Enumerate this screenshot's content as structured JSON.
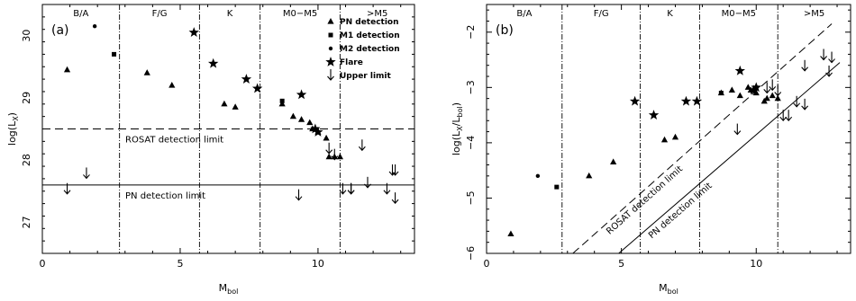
{
  "chart_data": [
    {
      "type": "scatter",
      "panel_label": "(a)",
      "xlabel": "M",
      "xlabel_sub": "bol",
      "ylabel": "log(L",
      "ylabel_sub": "X",
      "ylabel_tail": ")",
      "xlim": [
        0,
        13.5
      ],
      "ylim": [
        26.5,
        30.5
      ],
      "xticks": [
        0,
        5,
        10
      ],
      "yticks": [
        27,
        28,
        29,
        30
      ],
      "spectral_bands": [
        {
          "label": "B/A",
          "x_from": 0,
          "x_to": 2.8
        },
        {
          "label": "F/G",
          "x_from": 2.8,
          "x_to": 5.7
        },
        {
          "label": "K",
          "x_from": 5.7,
          "x_to": 7.9
        },
        {
          "label": "M0−M5",
          "x_from": 7.9,
          "x_to": 10.8
        },
        {
          "label": ">M5",
          "x_from": 10.8,
          "x_to": 13.5
        }
      ],
      "reference_lines": [
        {
          "label": "ROSAT detection limit",
          "y": 28.5,
          "style": "dashed"
        },
        {
          "label": "PN detection limit",
          "y": 27.6,
          "style": "solid"
        }
      ],
      "legend_position": "top-right",
      "series": [
        {
          "name": "PN detection",
          "marker": "triangle",
          "x": [
            0.9,
            3.8,
            4.7,
            6.6,
            7.0,
            8.7,
            9.1,
            9.4,
            9.7,
            9.8,
            10.0,
            10.3,
            10.4,
            10.6,
            10.8
          ],
          "y": [
            29.45,
            29.4,
            29.2,
            28.9,
            28.85,
            28.9,
            28.7,
            28.65,
            28.6,
            28.5,
            28.45,
            28.35,
            28.05,
            28.05,
            28.05
          ]
        },
        {
          "name": "M1 detection",
          "marker": "square",
          "x": [
            2.6,
            8.7
          ],
          "y": [
            29.7,
            28.95
          ]
        },
        {
          "name": "M2 detection",
          "marker": "dot",
          "x": [
            1.9
          ],
          "y": [
            30.15
          ]
        },
        {
          "name": "Flare",
          "marker": "star",
          "x": [
            5.5,
            6.2,
            7.4,
            7.8,
            9.4,
            9.9,
            10.0
          ],
          "y": [
            30.05,
            29.55,
            29.3,
            29.15,
            29.05,
            28.5,
            28.45
          ]
        },
        {
          "name": "Upper limit",
          "marker": "arrow-down",
          "x": [
            0.9,
            1.6,
            9.3,
            10.4,
            10.6,
            10.9,
            11.2,
            11.2,
            11.6,
            11.8,
            12.5,
            12.7,
            12.8,
            12.8
          ],
          "y": [
            27.5,
            27.75,
            27.4,
            28.15,
            28.05,
            27.5,
            27.5,
            27.5,
            28.2,
            27.6,
            27.5,
            27.8,
            27.8,
            27.35
          ]
        }
      ]
    },
    {
      "type": "scatter",
      "panel_label": "(b)",
      "xlabel": "M",
      "xlabel_sub": "bol",
      "ylabel": "log(L",
      "ylabel_sub": "X",
      "ylabel_mid": "/L",
      "ylabel_sub2": "bol",
      "ylabel_tail": ")",
      "xlim": [
        0,
        13.5
      ],
      "ylim": [
        -6,
        -1.5
      ],
      "xticks": [
        0,
        5,
        10
      ],
      "yticks": [
        -6,
        -5,
        -4,
        -3,
        -2
      ],
      "spectral_bands": [
        {
          "label": "B/A",
          "x_from": 0,
          "x_to": 2.8
        },
        {
          "label": "F/G",
          "x_from": 2.8,
          "x_to": 5.7
        },
        {
          "label": "K",
          "x_from": 5.7,
          "x_to": 7.9
        },
        {
          "label": "M0−M5",
          "x_from": 7.9,
          "x_to": 10.8
        },
        {
          "label": ">M5",
          "x_from": 10.8,
          "x_to": 13.5
        }
      ],
      "reference_lines": [
        {
          "label": "ROSAT detection limit",
          "style": "dashed",
          "x": [
            3.2,
            12.8
          ],
          "y": [
            -6.0,
            -1.85
          ]
        },
        {
          "label": "PN detection limit",
          "style": "solid",
          "x": [
            4.9,
            13.1
          ],
          "y": [
            -6.0,
            -2.55
          ]
        }
      ],
      "series": [
        {
          "name": "PN detection",
          "marker": "triangle",
          "x": [
            0.9,
            3.8,
            4.7,
            6.6,
            7.0,
            8.7,
            9.1,
            9.4,
            9.7,
            9.8,
            10.0,
            10.3,
            10.4,
            10.6,
            10.8
          ],
          "y": [
            -5.65,
            -4.6,
            -4.35,
            -3.95,
            -3.9,
            -3.1,
            -3.05,
            -3.15,
            -3.0,
            -3.05,
            -3.1,
            -3.25,
            -3.2,
            -3.15,
            -3.2
          ]
        },
        {
          "name": "M1 detection",
          "marker": "square",
          "x": [
            2.6,
            8.7
          ],
          "y": [
            -4.8,
            -3.1
          ]
        },
        {
          "name": "M2 detection",
          "marker": "dot",
          "x": [
            1.9
          ],
          "y": [
            -4.6
          ]
        },
        {
          "name": "Flare",
          "marker": "star",
          "x": [
            5.5,
            6.2,
            7.4,
            7.8,
            9.4,
            9.9,
            10.0
          ],
          "y": [
            -3.25,
            -3.5,
            -3.25,
            -3.25,
            -2.7,
            -3.05,
            -3.0
          ]
        },
        {
          "name": "Upper limit",
          "marker": "arrow-down",
          "x": [
            9.3,
            10.4,
            10.6,
            10.8,
            11.0,
            11.2,
            11.5,
            11.8,
            11.8,
            12.5,
            12.7,
            12.8
          ],
          "y": [
            -3.8,
            -3.05,
            -3.0,
            -3.1,
            -3.55,
            -3.55,
            -3.3,
            -2.65,
            -3.35,
            -2.45,
            -2.75,
            -2.5
          ]
        }
      ]
    }
  ]
}
